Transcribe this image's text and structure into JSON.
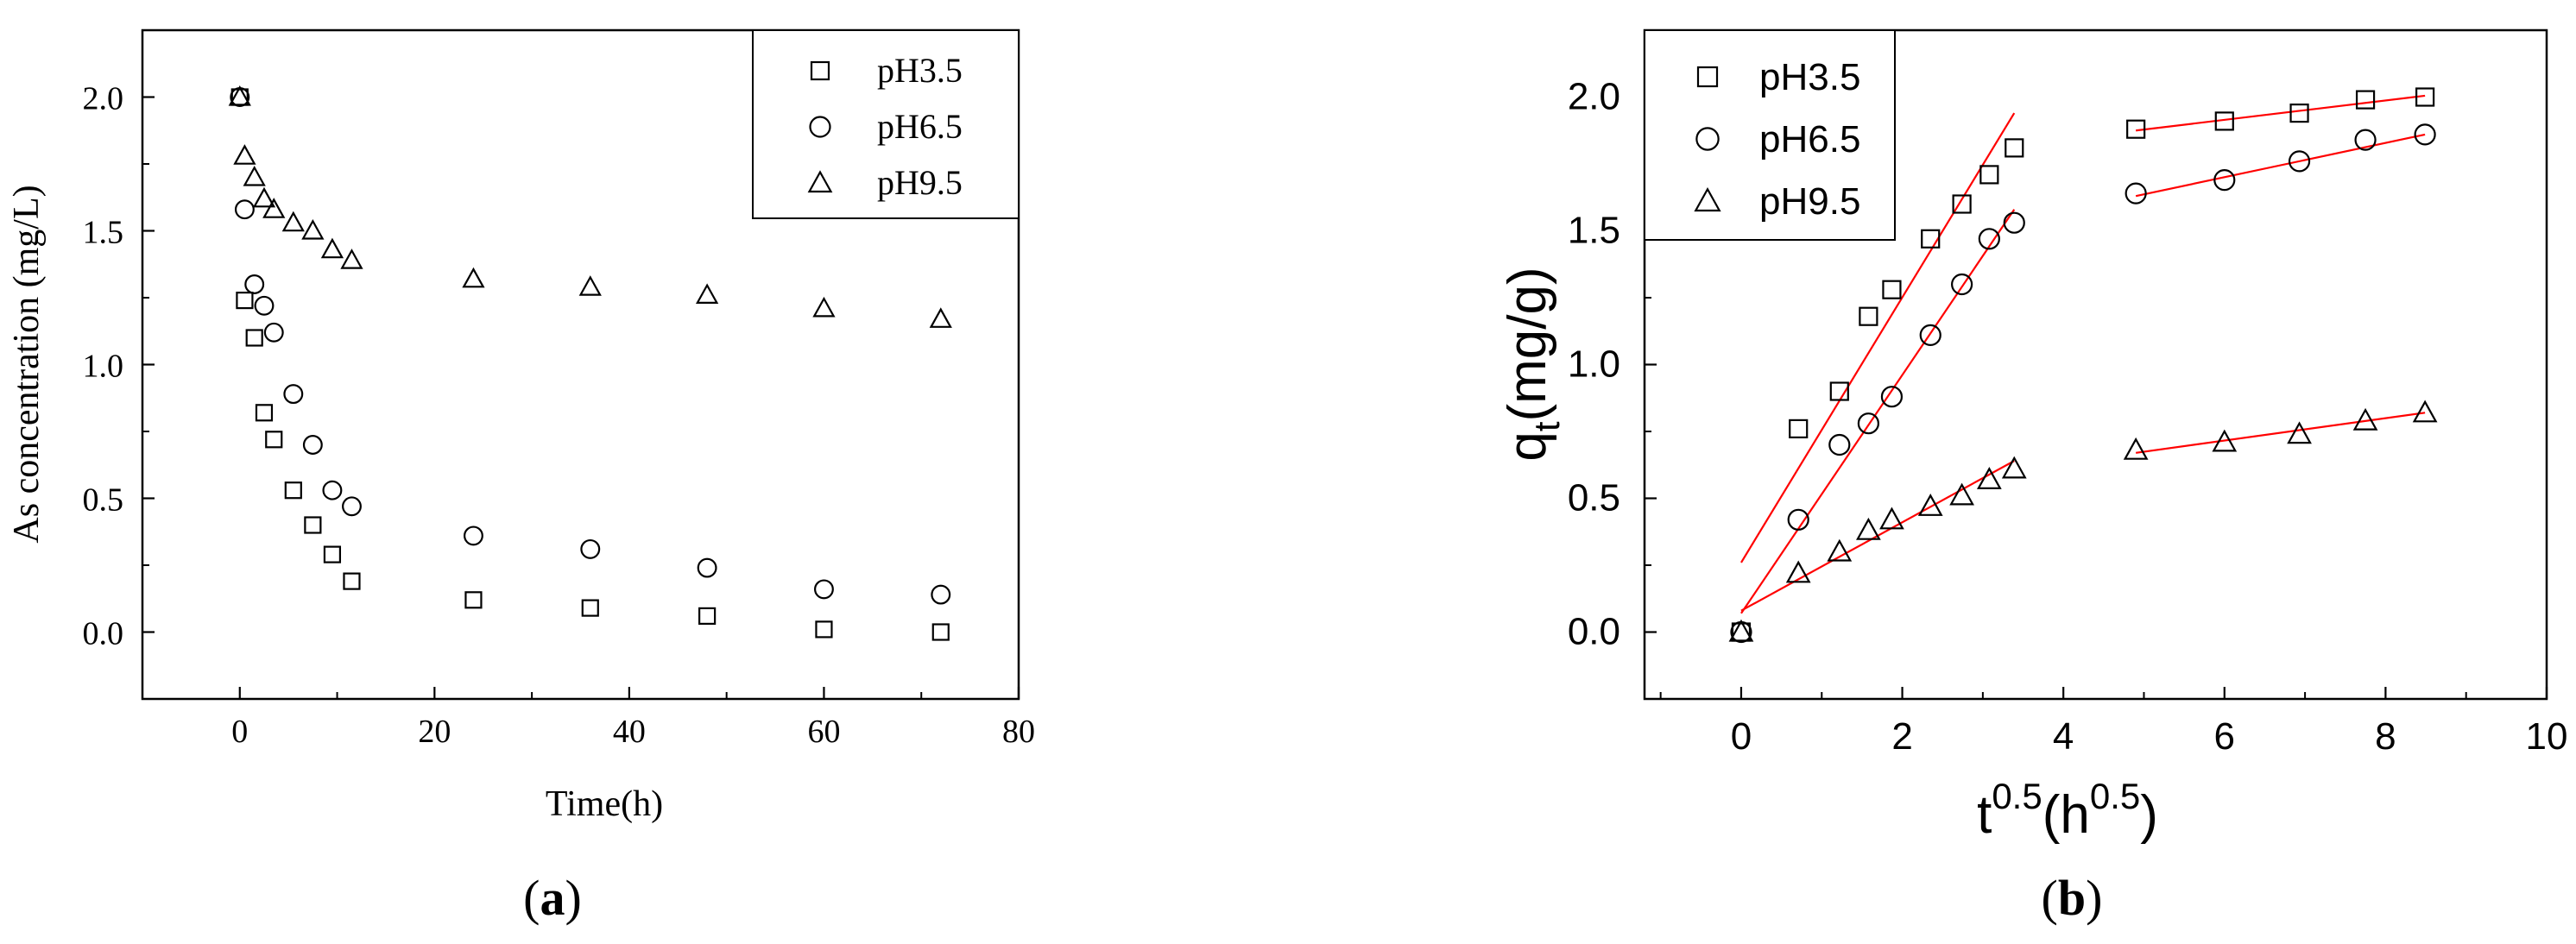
{
  "chart_data": [
    {
      "id": "a",
      "type": "scatter",
      "caption_open": "(",
      "caption_letter": "a",
      "caption_close": ")",
      "xlabel": "Time(h)",
      "ylabel": "As concentration (mg/L)",
      "xlim": [
        -10,
        80
      ],
      "ylim": [
        -0.25,
        2.25
      ],
      "xticks": [
        0,
        20,
        40,
        60,
        80
      ],
      "xtick_labels": [
        "0",
        "20",
        "40",
        "60",
        "80"
      ],
      "yticks": [
        0.0,
        0.5,
        1.0,
        1.5,
        2.0
      ],
      "ytick_labels": [
        "0.0",
        "0.5",
        "1.0",
        "1.5",
        "2.0"
      ],
      "legend_position": "top-right",
      "grid": false,
      "series": [
        {
          "name": "pH3.5",
          "marker": "square",
          "x": [
            0,
            0.5,
            1.5,
            2.5,
            3.5,
            5.5,
            7.5,
            9.5,
            11.5,
            24,
            36,
            48,
            60,
            72
          ],
          "y": [
            2.0,
            1.24,
            1.1,
            0.82,
            0.72,
            0.53,
            0.4,
            0.29,
            0.19,
            0.12,
            0.09,
            0.06,
            0.01,
            0.0
          ]
        },
        {
          "name": "pH6.5",
          "marker": "circle",
          "x": [
            0,
            0.5,
            1.5,
            2.5,
            3.5,
            5.5,
            7.5,
            9.5,
            11.5,
            24,
            36,
            48,
            60,
            72
          ],
          "y": [
            2.0,
            1.58,
            1.3,
            1.22,
            1.12,
            0.89,
            0.7,
            0.53,
            0.47,
            0.36,
            0.31,
            0.24,
            0.16,
            0.14
          ]
        },
        {
          "name": "pH9.5",
          "marker": "triangle",
          "x": [
            0,
            0.5,
            1.5,
            2.5,
            3.5,
            5.5,
            7.5,
            9.5,
            11.5,
            24,
            36,
            48,
            60,
            72
          ],
          "y": [
            2.0,
            1.78,
            1.7,
            1.62,
            1.58,
            1.53,
            1.5,
            1.43,
            1.39,
            1.32,
            1.29,
            1.26,
            1.21,
            1.17
          ]
        }
      ]
    },
    {
      "id": "b",
      "type": "scatter",
      "caption_open": "(",
      "caption_letter": "b",
      "caption_close": ")",
      "xlabel_base": "t",
      "xlabel_sup": "0.5",
      "xlabel_mid": "(h",
      "xlabel_sup2": "0.5",
      "xlabel_end": ")",
      "ylabel_base": "q",
      "ylabel_sub": "t",
      "ylabel_end": "(mg/g)",
      "xlim": [
        -1.2,
        10
      ],
      "ylim": [
        -0.25,
        2.25
      ],
      "xticks": [
        0,
        2,
        4,
        6,
        8,
        10
      ],
      "xtick_labels": [
        "0",
        "2",
        "4",
        "6",
        "8",
        "10"
      ],
      "yticks": [
        0.0,
        0.5,
        1.0,
        1.5,
        2.0
      ],
      "ytick_labels": [
        "0.0",
        "0.5",
        "1.0",
        "1.5",
        "2.0"
      ],
      "legend_position": "top-left",
      "grid": false,
      "fit_color": "#ff0000",
      "series": [
        {
          "name": "pH3.5",
          "marker": "square",
          "x": [
            0,
            0.71,
            1.22,
            1.58,
            1.87,
            2.35,
            2.74,
            3.08,
            3.39,
            4.9,
            6.0,
            6.93,
            7.75,
            8.49
          ],
          "y": [
            0.0,
            0.76,
            0.9,
            1.18,
            1.28,
            1.47,
            1.6,
            1.71,
            1.81,
            1.88,
            1.91,
            1.94,
            1.99,
            2.0
          ],
          "fits": [
            {
              "x": [
                0.0,
                3.39
              ],
              "y": [
                0.26,
                1.94
              ]
            },
            {
              "x": [
                4.9,
                8.49
              ],
              "y": [
                1.875,
                2.005
              ]
            }
          ]
        },
        {
          "name": "pH6.5",
          "marker": "circle",
          "x": [
            0,
            0.71,
            1.22,
            1.58,
            1.87,
            2.35,
            2.74,
            3.08,
            3.39,
            4.9,
            6.0,
            6.93,
            7.75,
            8.49
          ],
          "y": [
            0.0,
            0.42,
            0.7,
            0.78,
            0.88,
            1.11,
            1.3,
            1.47,
            1.53,
            1.64,
            1.69,
            1.76,
            1.84,
            1.86
          ],
          "fits": [
            {
              "x": [
                0.0,
                3.39
              ],
              "y": [
                0.07,
                1.58
              ]
            },
            {
              "x": [
                4.9,
                8.49
              ],
              "y": [
                1.63,
                1.86
              ]
            }
          ]
        },
        {
          "name": "pH9.5",
          "marker": "triangle",
          "x": [
            0,
            0.71,
            1.22,
            1.58,
            1.87,
            2.35,
            2.74,
            3.08,
            3.39,
            4.9,
            6.0,
            6.93,
            7.75,
            8.49
          ],
          "y": [
            0.0,
            0.22,
            0.3,
            0.38,
            0.42,
            0.47,
            0.51,
            0.57,
            0.61,
            0.68,
            0.71,
            0.74,
            0.79,
            0.82
          ],
          "fits": [
            {
              "x": [
                0.0,
                3.39
              ],
              "y": [
                0.08,
                0.64
              ]
            },
            {
              "x": [
                4.9,
                8.49
              ],
              "y": [
                0.67,
                0.82
              ]
            }
          ]
        }
      ]
    }
  ]
}
